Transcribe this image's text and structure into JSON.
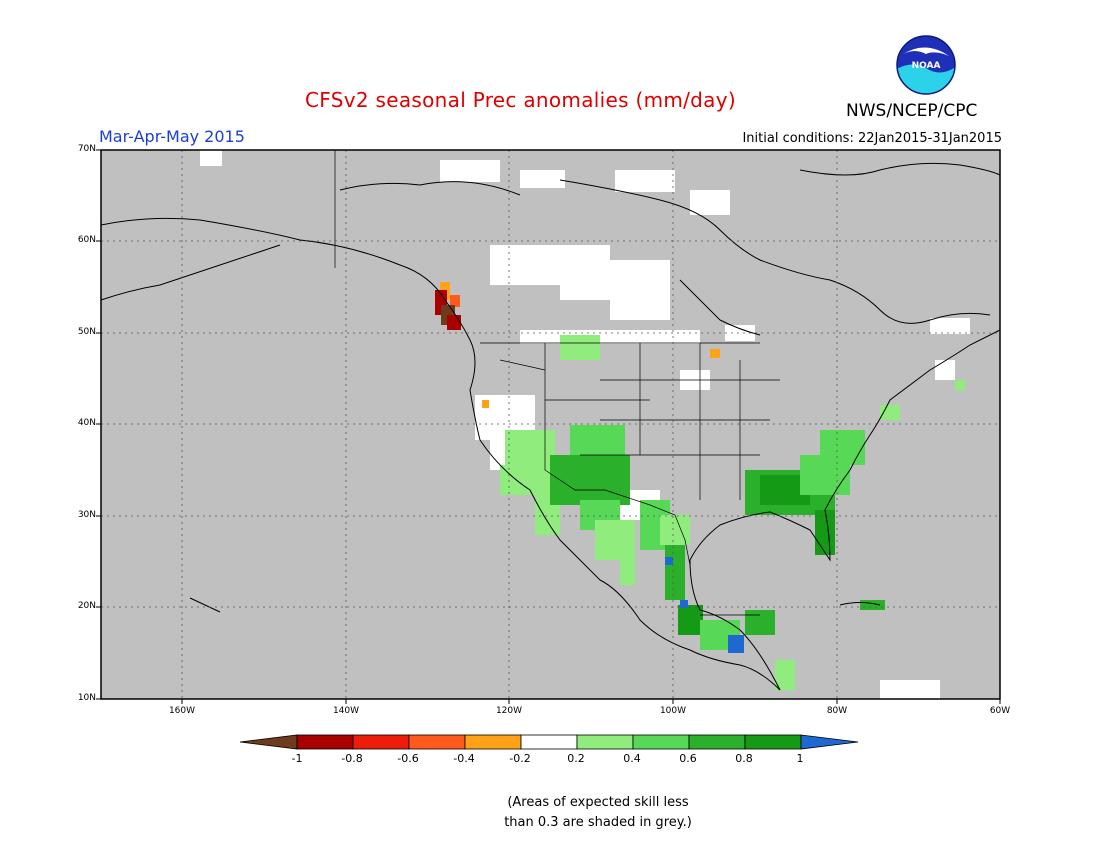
{
  "header": {
    "title": "CFSv2 seasonal Prec anomalies (mm/day)",
    "agency": "NWS/NCEP/CPC",
    "season": "Mar-Apr-May 2015",
    "initial_conditions": "Initial conditions: 22Jan2015-31Jan2015"
  },
  "map": {
    "lat_labels": [
      "70N",
      "60N",
      "50N",
      "40N",
      "30N",
      "20N",
      "10N"
    ],
    "lon_labels": [
      "160W",
      "140W",
      "120W",
      "100W",
      "80W",
      "60W"
    ],
    "colors": {
      "grey": "#c0c0c0",
      "white": "#ffffff",
      "neg1": "#6e3b1e",
      "neg08": "#a90000",
      "neg06": "#ee1c0b",
      "neg04": "#ff5a1e",
      "neg02": "#ffa216",
      "pos02": "#90ec7c",
      "pos04": "#57d957",
      "pos06": "#2bb02b",
      "pos08": "#149a14",
      "pos1": "#1e68d2"
    }
  },
  "colorbar": {
    "labels": [
      "-1",
      "-0.8",
      "-0.6",
      "-0.4",
      "-0.2",
      "0.2",
      "0.4",
      "0.6",
      "0.8",
      "1"
    ],
    "colors": [
      "#6e3b1e",
      "#a90000",
      "#ee1c0b",
      "#ff5a1e",
      "#ffa216",
      "#ffffff",
      "#90ec7c",
      "#57d957",
      "#2bb02b",
      "#149a14",
      "#1e68d2"
    ]
  },
  "footnote": {
    "line1": "(Areas of expected skill less",
    "line2": "than 0.3 are shaded in grey.)"
  }
}
